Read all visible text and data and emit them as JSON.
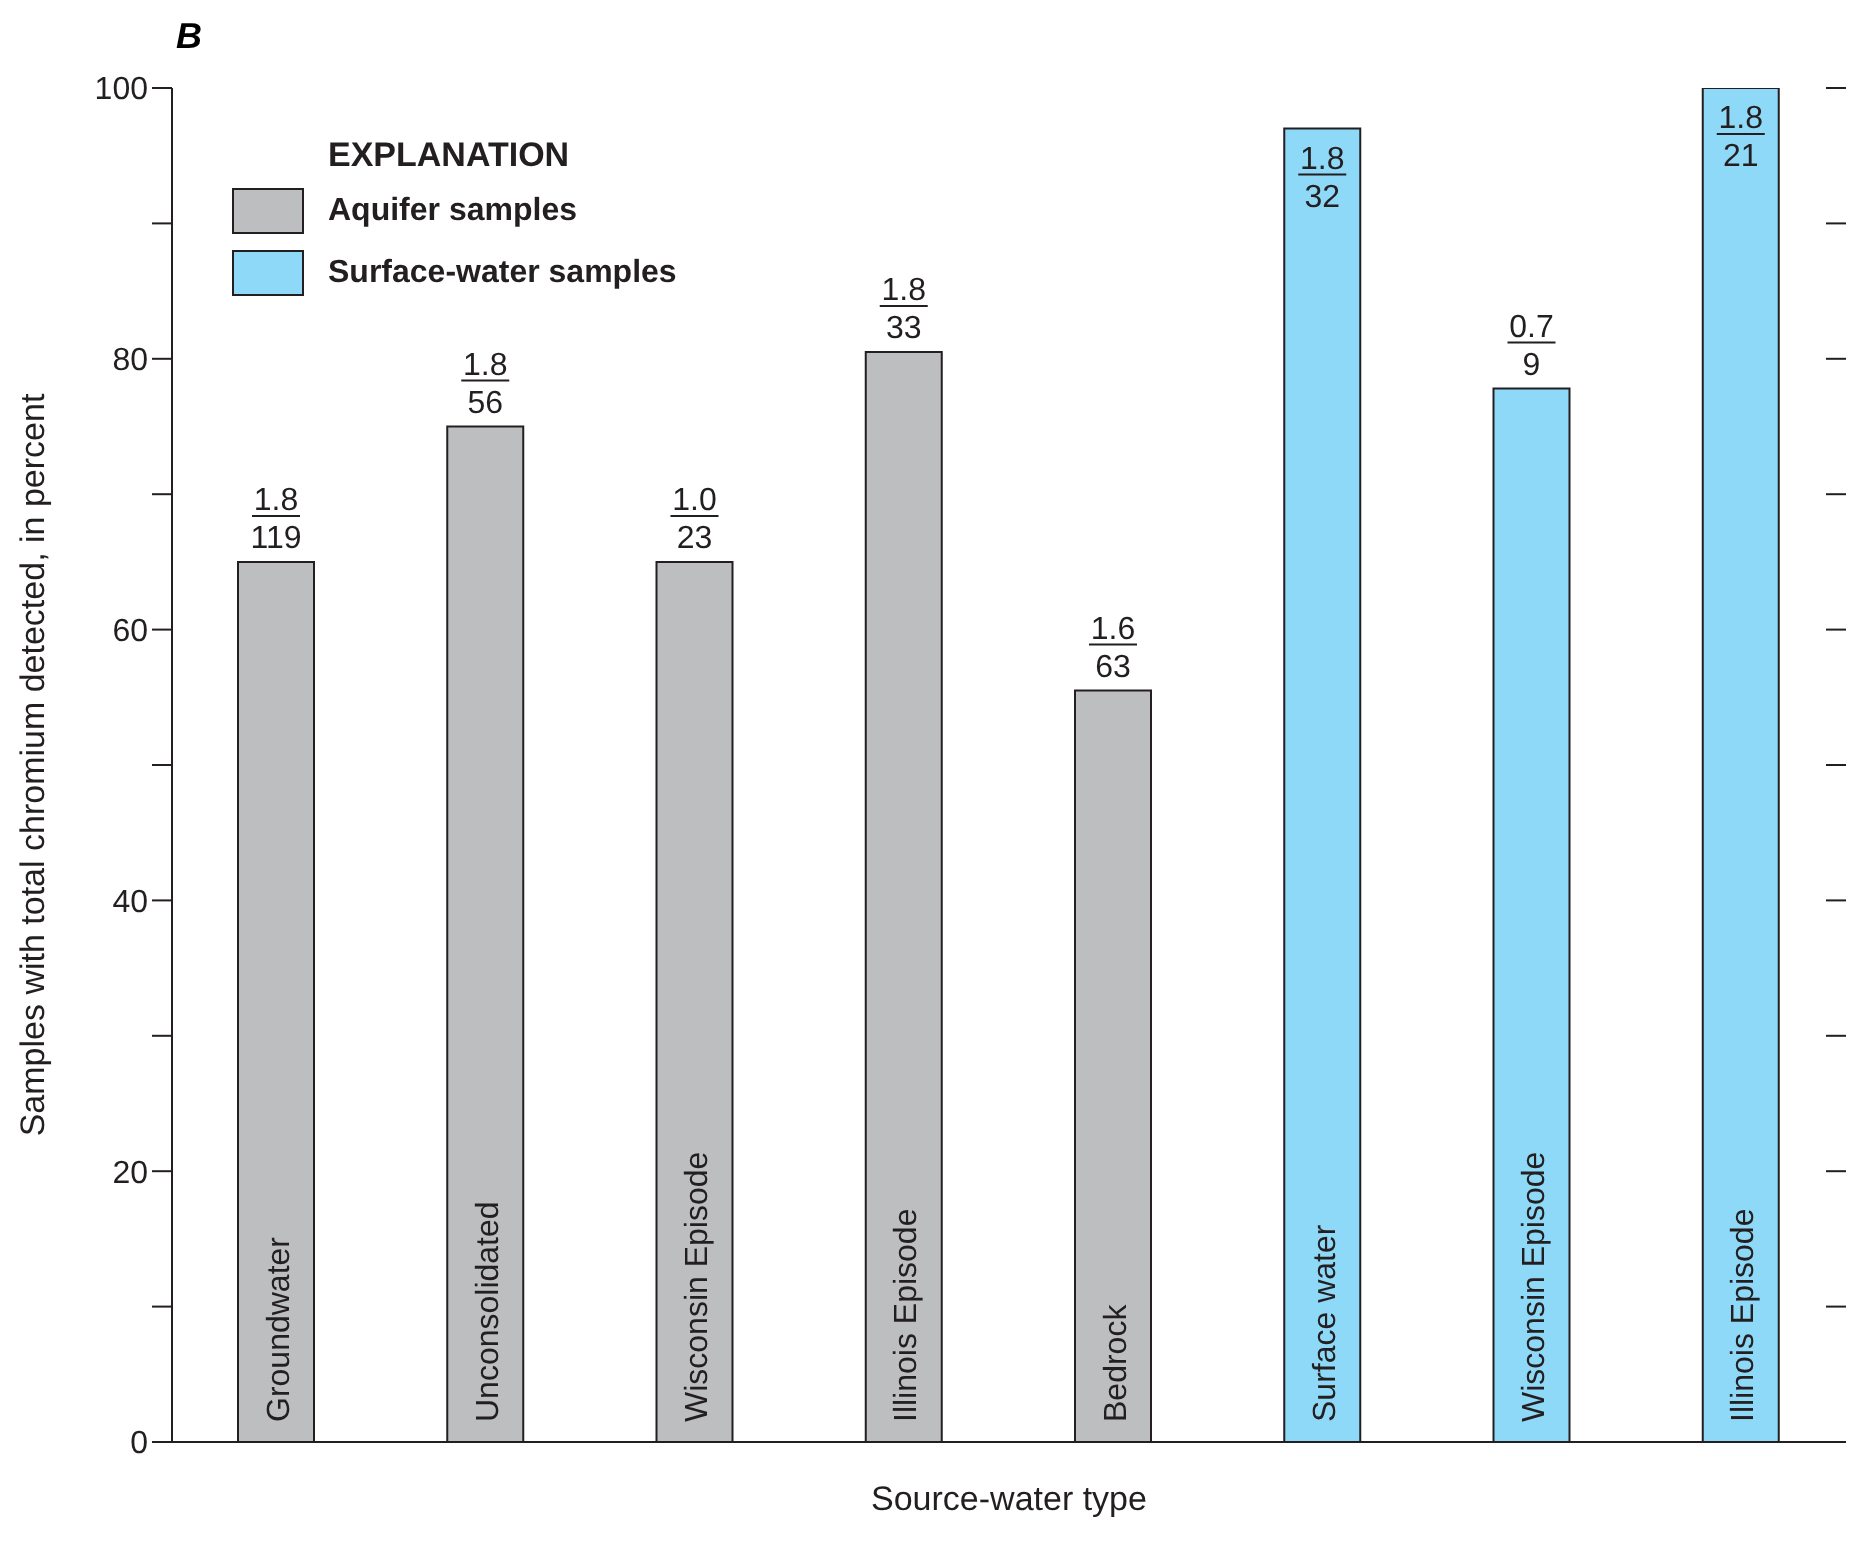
{
  "chart_data": {
    "type": "bar",
    "title": "B",
    "xlabel": "Source-water type",
    "ylabel": "Samples with total chromium detected, in percent",
    "legend_title": "EXPLANATION",
    "legend": "top left",
    "categories": [
      "Groundwater",
      "Unconsolidated",
      "Wisconsin Episode",
      "Illinois Episode",
      "Bedrock",
      "Surface water",
      "Wisconsin Episode",
      "Illinois Episode"
    ],
    "series": [
      {
        "name": "Aquifer samples",
        "color": "#bcbec0",
        "values": [
          65,
          75,
          65,
          80.5,
          55.5,
          null,
          null,
          null
        ]
      },
      {
        "name": "Surface-water samples",
        "color": "#8ed8f8",
        "values": [
          null,
          null,
          null,
          null,
          null,
          97,
          77.8,
          100
        ]
      }
    ],
    "ylim": [
      0,
      100
    ],
    "yticks": [
      0,
      {
        "value": 10,
        "label": null
      },
      20,
      {
        "value": 30,
        "label": null
      },
      40,
      {
        "value": 50,
        "label": null
      },
      60,
      {
        "value": 70,
        "label": null
      },
      80,
      {
        "value": 90,
        "label": null
      },
      100
    ],
    "annotations": [
      "1.8\n119",
      "1.8\n56",
      "1.0\n23",
      "1.8\n33",
      "1.6\n63",
      "1.8\n32",
      "0.7\n9",
      "1.8\n21"
    ],
    "grid": false
  }
}
